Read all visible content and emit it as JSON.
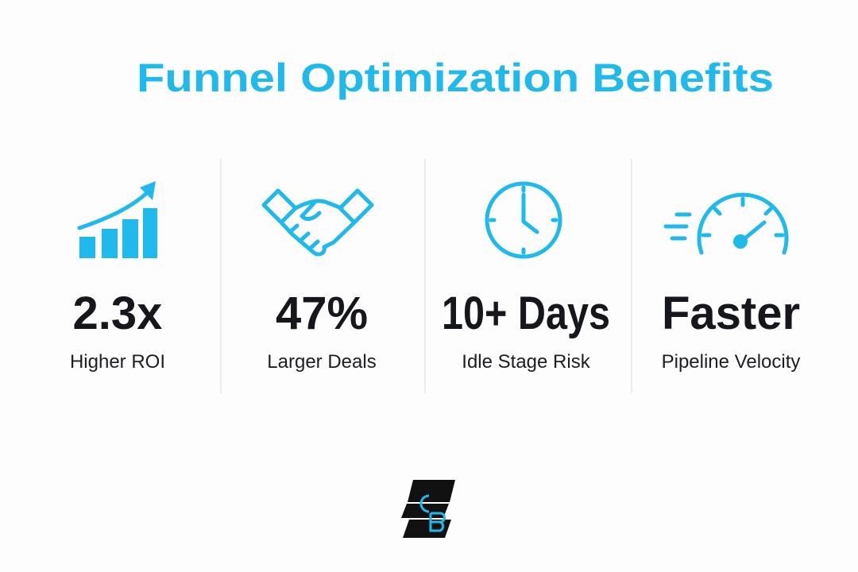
{
  "title": "Funnel Optimization Benefits",
  "stats": [
    {
      "value": "2.3x",
      "label": "Higher ROI"
    },
    {
      "value": "47%",
      "label": "Larger Deals"
    },
    {
      "value": "10+ Days",
      "label": "Idle Stage Risk"
    },
    {
      "value": "Faster",
      "label": "Pipeline Velocity"
    }
  ]
}
